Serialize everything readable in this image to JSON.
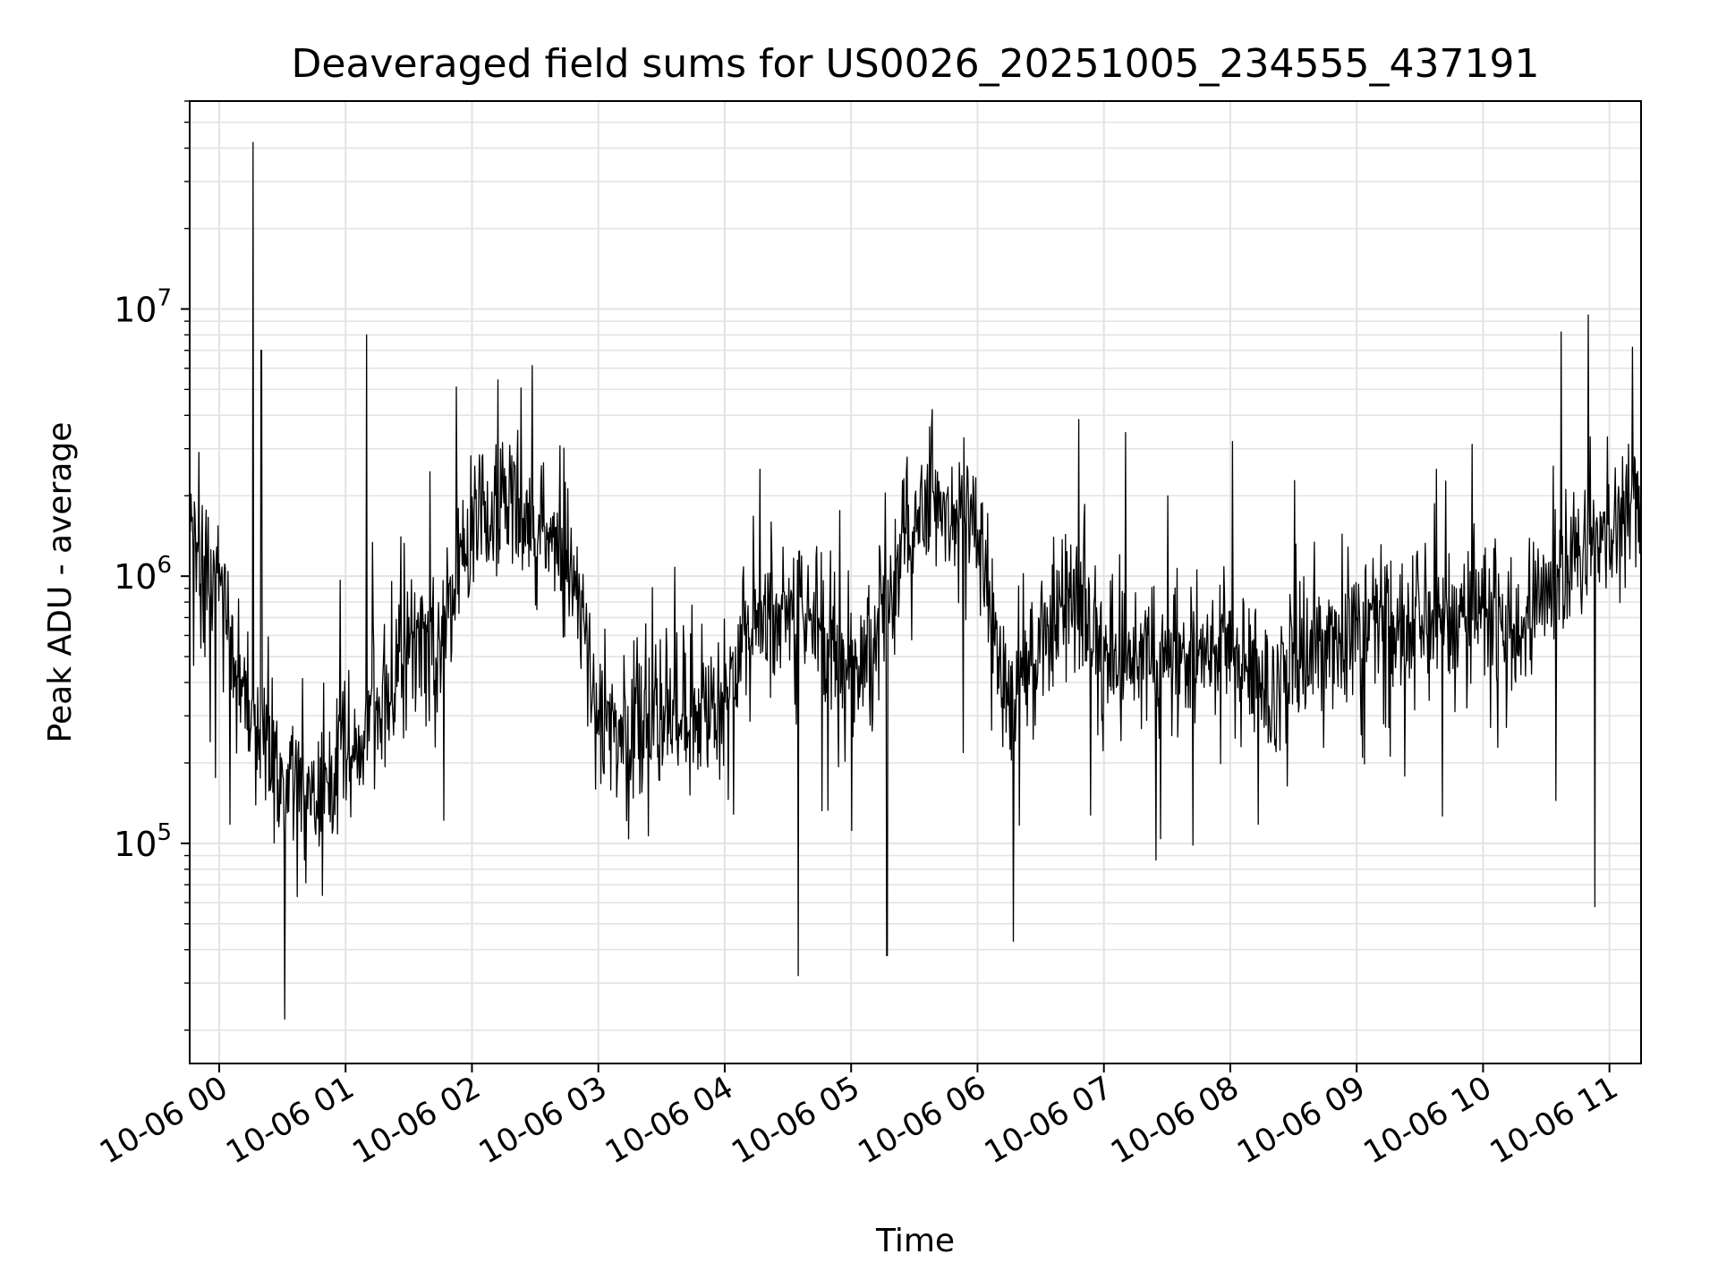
{
  "chart_data": {
    "type": "line",
    "title": "Deaveraged field sums for US0026_20251005_234555_437191",
    "xlabel": "Time",
    "ylabel": "Peak ADU - average",
    "yscale": "log",
    "ylim": [
      15000,
      60000000
    ],
    "xlim": [
      "2025-10-05 23:46",
      "2025-10-06 11:15"
    ],
    "xticks": [
      "10-06 00",
      "10-06 01",
      "10-06 02",
      "10-06 03",
      "10-06 04",
      "10-06 05",
      "10-06 06",
      "10-06 07",
      "10-06 08",
      "10-06 09",
      "10-06 10",
      "10-06 11"
    ],
    "yticks": [
      {
        "base": "10",
        "exp": "5",
        "value": 100000
      },
      {
        "base": "10",
        "exp": "6",
        "value": 1000000
      },
      {
        "base": "10",
        "exp": "7",
        "value": 10000000
      }
    ],
    "grid": true,
    "line_color": "#000000",
    "series": [
      {
        "x": [
          "2025-10-05 23:46",
          "2025-10-06 00:00",
          "2025-10-06 00:15",
          "2025-10-06 00:30",
          "2025-10-06 00:45",
          "2025-10-06 01:00",
          "2025-10-06 01:15",
          "2025-10-06 01:30",
          "2025-10-06 01:45",
          "2025-10-06 02:00",
          "2025-10-06 02:15",
          "2025-10-06 02:30",
          "2025-10-06 02:45",
          "2025-10-06 03:00",
          "2025-10-06 03:15",
          "2025-10-06 03:30",
          "2025-10-06 03:45",
          "2025-10-06 04:00",
          "2025-10-06 04:15",
          "2025-10-06 04:30",
          "2025-10-06 04:45",
          "2025-10-06 05:00",
          "2025-10-06 05:15",
          "2025-10-06 05:30",
          "2025-10-06 05:45",
          "2025-10-06 06:00",
          "2025-10-06 06:15",
          "2025-10-06 06:30",
          "2025-10-06 06:45",
          "2025-10-06 07:00",
          "2025-10-06 07:15",
          "2025-10-06 07:30",
          "2025-10-06 07:45",
          "2025-10-06 08:00",
          "2025-10-06 08:15",
          "2025-10-06 08:30",
          "2025-10-06 08:45",
          "2025-10-06 09:00",
          "2025-10-06 09:15",
          "2025-10-06 09:30",
          "2025-10-06 09:45",
          "2025-10-06 10:00",
          "2025-10-06 10:15",
          "2025-10-06 10:30",
          "2025-10-06 10:45",
          "2025-10-06 11:00",
          "2025-10-06 11:15"
        ],
        "y": [
          1500000,
          900000,
          300000,
          180000,
          150000,
          200000,
          300000,
          500000,
          600000,
          1500000,
          2000000,
          1500000,
          1200000,
          300000,
          250000,
          280000,
          300000,
          350000,
          700000,
          800000,
          700000,
          400000,
          600000,
          1800000,
          1800000,
          1500000,
          300000,
          600000,
          800000,
          500000,
          500000,
          500000,
          550000,
          500000,
          400000,
          450000,
          500000,
          700000,
          600000,
          700000,
          700000,
          800000,
          600000,
          1000000,
          1200000,
          1500000,
          1800000
        ],
        "spikes": [
          {
            "x": "2025-10-06 00:16",
            "y": 42000000
          },
          {
            "x": "2025-10-06 00:20",
            "y": 7000000
          },
          {
            "x": "2025-10-06 00:31",
            "y": 22000
          },
          {
            "x": "2025-10-06 01:10",
            "y": 8000000
          },
          {
            "x": "2025-10-06 04:35",
            "y": 32000
          },
          {
            "x": "2025-10-06 05:17",
            "y": 38000
          },
          {
            "x": "2025-10-06 06:17",
            "y": 43000
          },
          {
            "x": "2025-10-06 10:37",
            "y": 8200000
          },
          {
            "x": "2025-10-06 10:50",
            "y": 9500000
          },
          {
            "x": "2025-10-06 10:53",
            "y": 58000
          },
          {
            "x": "2025-10-06 11:11",
            "y": 7200000
          }
        ]
      }
    ]
  }
}
